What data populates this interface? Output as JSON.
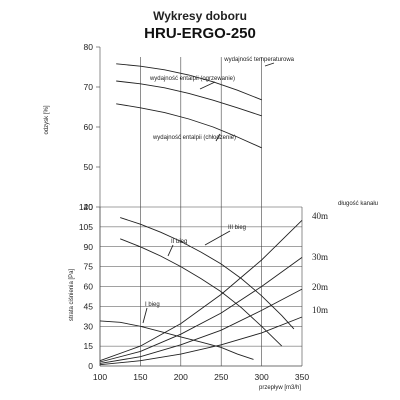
{
  "header": {
    "title": "Wykresy doboru",
    "model": "HRU-ERGO-250"
  },
  "chart_data": [
    {
      "type": "line",
      "name_key": "efficiency",
      "ylabel": "odzysk [%]",
      "xlim": [
        100,
        350
      ],
      "ylim": [
        40,
        80
      ],
      "y_ticks": [
        40,
        50,
        60,
        70,
        80
      ],
      "grid": true,
      "series": [
        {
          "name": "wydajność temperaturowa",
          "x": [
            120,
            150,
            180,
            210,
            240,
            270,
            300
          ],
          "y": [
            75.8,
            75.2,
            74.3,
            73.0,
            71.3,
            69.2,
            66.8
          ]
        },
        {
          "name": "wydajność entalpii (ogrzewanie)",
          "x": [
            120,
            150,
            180,
            210,
            240,
            270,
            300
          ],
          "y": [
            71.5,
            70.8,
            69.8,
            68.4,
            66.7,
            64.8,
            62.8
          ]
        },
        {
          "name": "wydajność entalpii (chłodzenie)",
          "x": [
            120,
            150,
            180,
            210,
            240,
            270,
            300
          ],
          "y": [
            65.8,
            64.8,
            63.6,
            62.0,
            60.0,
            57.5,
            54.8
          ]
        }
      ]
    },
    {
      "type": "line",
      "name_key": "pressure",
      "ylabel": "strata ciśnienia [Pa]",
      "xlabel": "przepływ [m3/h]",
      "xlim": [
        100,
        350
      ],
      "ylim": [
        0,
        120
      ],
      "x_ticks": [
        100,
        150,
        200,
        250,
        300,
        350
      ],
      "y_ticks": [
        0,
        15,
        30,
        45,
        60,
        75,
        90,
        105,
        120
      ],
      "grid": true,
      "fan_curves": [
        {
          "name": "III bieg",
          "x": [
            125,
            150,
            175,
            200,
            225,
            250,
            275,
            300,
            325,
            340
          ],
          "y": [
            112,
            107,
            101,
            94,
            86,
            77,
            66,
            53,
            38,
            28
          ]
        },
        {
          "name": "II bieg",
          "x": [
            125,
            150,
            175,
            200,
            225,
            250,
            275,
            300,
            325
          ],
          "y": [
            96,
            90,
            83,
            75,
            66,
            56,
            44,
            30,
            15
          ]
        },
        {
          "name": "I bieg",
          "x": [
            100,
            125,
            150,
            175,
            200,
            225,
            250,
            270,
            290
          ],
          "y": [
            34,
            33,
            30,
            26,
            22,
            18,
            14,
            9,
            5
          ]
        }
      ],
      "duct_curves": [
        {
          "name": "40m",
          "x": [
            100,
            150,
            200,
            250,
            300,
            350
          ],
          "y": [
            4,
            15,
            32,
            54,
            80,
            110
          ]
        },
        {
          "name": "30m",
          "x": [
            100,
            150,
            200,
            250,
            300,
            350
          ],
          "y": [
            3,
            11,
            24,
            40,
            60,
            82
          ]
        },
        {
          "name": "20m",
          "x": [
            100,
            150,
            200,
            250,
            300,
            350
          ],
          "y": [
            2,
            7,
            16,
            27,
            42,
            58
          ]
        },
        {
          "name": "10m",
          "x": [
            100,
            150,
            200,
            250,
            300,
            350
          ],
          "y": [
            1,
            4,
            9,
            16,
            25,
            37
          ]
        }
      ],
      "duct_legend_title": "długość kanału"
    }
  ]
}
